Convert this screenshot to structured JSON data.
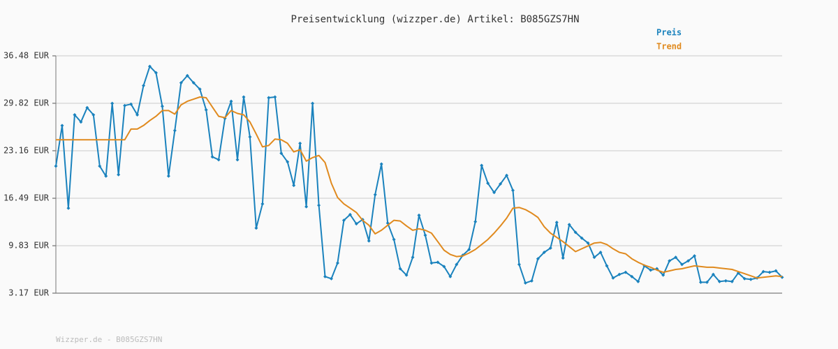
{
  "chart_data": {
    "type": "line",
    "title": "Preisentwicklung (wizzper.de) Artikel: B085GZS7HN",
    "footer": "Wizzper.de - B085GZS7HN",
    "ylim": [
      3.17,
      36.48
    ],
    "yticks": [
      {
        "value": 3.17,
        "label": "3.17 EUR"
      },
      {
        "value": 9.83,
        "label": "9.83 EUR"
      },
      {
        "value": 16.49,
        "label": "16.49 EUR"
      },
      {
        "value": 23.16,
        "label": "23.16 EUR"
      },
      {
        "value": 29.82,
        "label": "29.82 EUR"
      },
      {
        "value": 36.48,
        "label": "36.48 EUR"
      }
    ],
    "grid": true,
    "legend": "top-right",
    "series": [
      {
        "name": "Preis",
        "color": "#1a82bd",
        "markers": true,
        "values": [
          21.0,
          26.7,
          15.1,
          28.2,
          27.2,
          29.2,
          28.2,
          21.0,
          19.6,
          29.8,
          19.8,
          29.5,
          29.7,
          28.2,
          32.3,
          35.0,
          34.1,
          29.4,
          19.6,
          26.0,
          32.7,
          33.7,
          32.7,
          31.8,
          28.9,
          22.3,
          21.9,
          27.7,
          30.1,
          21.9,
          30.7,
          25.1,
          12.3,
          15.7,
          30.6,
          30.7,
          22.8,
          21.6,
          18.3,
          24.2,
          15.3,
          29.8,
          15.5,
          5.5,
          5.2,
          7.4,
          13.4,
          14.2,
          12.9,
          13.5,
          10.5,
          17.0,
          21.3,
          13.0,
          10.7,
          6.6,
          5.7,
          8.2,
          14.1,
          11.3,
          7.4,
          7.5,
          6.9,
          5.5,
          7.2,
          8.5,
          9.3,
          13.2,
          21.1,
          18.6,
          17.3,
          18.5,
          19.7,
          17.6,
          7.2,
          4.6,
          4.9,
          8.0,
          8.9,
          9.5,
          13.1,
          8.1,
          12.8,
          11.7,
          10.9,
          10.2,
          8.2,
          8.9,
          7.0,
          5.3,
          5.8,
          6.1,
          5.5,
          4.8,
          7.0,
          6.4,
          6.6,
          5.7,
          7.7,
          8.2,
          7.2,
          7.7,
          8.4,
          4.7,
          4.7,
          5.8,
          4.8,
          4.9,
          4.8,
          6.0,
          5.2,
          5.1,
          5.3,
          6.2,
          6.1,
          6.3,
          5.4
        ]
      },
      {
        "name": "Trend",
        "color": "#e08a1e",
        "markers": false,
        "values": [
          24.7,
          24.7,
          24.7,
          24.7,
          24.7,
          24.7,
          24.7,
          24.7,
          24.7,
          24.7,
          24.7,
          24.7,
          26.2,
          26.2,
          26.7,
          27.4,
          28.0,
          28.8,
          28.8,
          28.3,
          29.6,
          30.1,
          30.4,
          30.7,
          30.6,
          29.3,
          28.0,
          27.8,
          28.8,
          28.4,
          28.2,
          27.2,
          25.5,
          23.7,
          23.9,
          24.8,
          24.7,
          24.2,
          23.0,
          23.3,
          21.7,
          22.2,
          22.5,
          21.5,
          18.6,
          16.6,
          15.7,
          15.1,
          14.5,
          13.4,
          12.7,
          11.5,
          12.0,
          12.7,
          13.4,
          13.3,
          12.6,
          12.0,
          12.2,
          12.0,
          11.6,
          10.4,
          9.2,
          8.6,
          8.3,
          8.4,
          8.8,
          9.3,
          10.0,
          10.7,
          11.6,
          12.6,
          13.7,
          15.1,
          15.2,
          14.9,
          14.4,
          13.8,
          12.5,
          11.6,
          11.0,
          10.4,
          9.7,
          9.0,
          9.4,
          9.8,
          10.2,
          10.3,
          10.0,
          9.4,
          8.9,
          8.7,
          8.0,
          7.5,
          7.1,
          6.8,
          6.4,
          6.1,
          6.3,
          6.5,
          6.6,
          6.8,
          7.0,
          6.9,
          6.8,
          6.8,
          6.7,
          6.6,
          6.5,
          6.2,
          5.9,
          5.6,
          5.3,
          5.4,
          5.5,
          5.6,
          5.5
        ]
      }
    ]
  }
}
